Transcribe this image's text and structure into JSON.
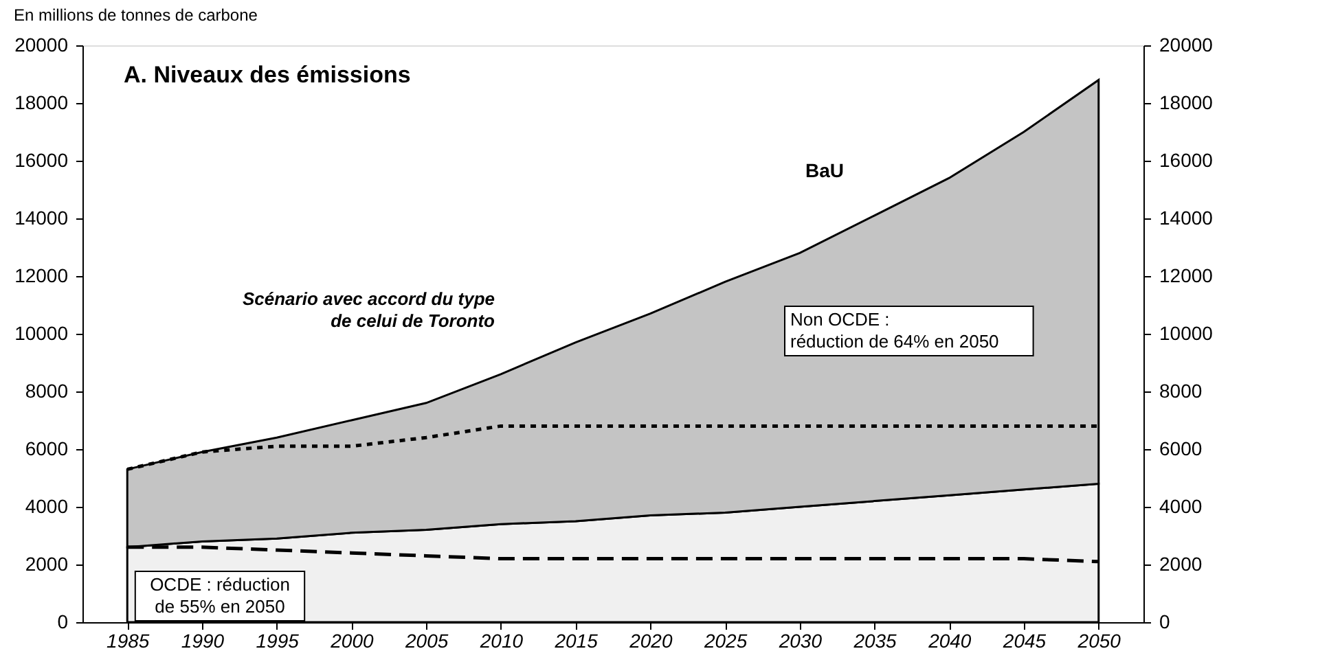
{
  "chart_data": {
    "type": "area",
    "stacked": true,
    "title": "A. Niveaux des émissions",
    "ylabel": "En millions de tonnes de carbone",
    "x": [
      1985,
      1990,
      1995,
      2000,
      2005,
      2010,
      2015,
      2020,
      2025,
      2030,
      2035,
      2040,
      2045,
      2050
    ],
    "series": [
      {
        "color": "#f0f0f0",
        "values": [
          2600,
          2800,
          2900,
          3100,
          3200,
          3400,
          3500,
          3700,
          3800,
          4000,
          4200,
          4400,
          4600,
          4800
        ]
      },
      {
        "color": "#c4c4c4",
        "values": [
          2700,
          3100,
          3500,
          3900,
          4400,
          5200,
          6200,
          7000,
          8000,
          8800,
          9900,
          11000,
          12400,
          14000
        ]
      },
      {
        "type": "line",
        "line_style": "dotted",
        "color": "#000000",
        "values": [
          5300,
          5900,
          6100,
          6100,
          6400,
          6800,
          6800,
          6800,
          6800,
          6800,
          6800,
          6800,
          6800,
          6800
        ]
      },
      {
        "type": "line",
        "line_style": "dashed",
        "color": "#000000",
        "values": [
          2600,
          2600,
          2500,
          2400,
          2300,
          2200,
          2200,
          2200,
          2200,
          2200,
          2200,
          2200,
          2200,
          2100
        ]
      }
    ],
    "xlim": [
      1982,
      2053
    ],
    "xticks": [
      1985,
      1990,
      1995,
      2000,
      2005,
      2010,
      2015,
      2020,
      2025,
      2030,
      2035,
      2040,
      2045,
      2050
    ],
    "ylim": [
      0,
      20000
    ],
    "yticks": [
      0,
      2000,
      4000,
      6000,
      8000,
      10000,
      12000,
      14000,
      16000,
      18000,
      20000
    ],
    "y2lim": [
      0,
      20000
    ],
    "y2ticks": [
      0,
      2000,
      4000,
      6000,
      8000,
      10000,
      12000,
      14000,
      16000,
      18000,
      20000
    ],
    "grid": false,
    "annotations": [
      "BaU",
      "Scénario avec accord du type de celui de Toronto",
      "Non OCDE : réduction de 64% en 2050",
      "OCDE : réduction de 55% en 2050"
    ]
  }
}
